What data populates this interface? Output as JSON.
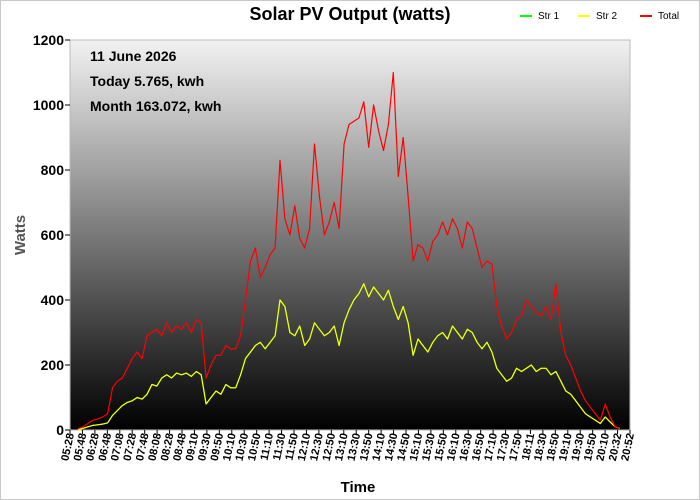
{
  "chart_data": {
    "type": "line",
    "title": "Solar PV Output (watts)",
    "xlabel": "Time",
    "ylabel": "Watts",
    "ylim": [
      0,
      1200
    ],
    "yticks": [
      0,
      200,
      400,
      600,
      800,
      1000,
      1200
    ],
    "grid": false,
    "legend_position": "top-right",
    "annotations": [
      "11 June 2026",
      "Today 5.765, kwh",
      "Month 163.072, kwh"
    ],
    "x_tick_labels": [
      "05:28",
      "05:48",
      "06:28",
      "06:48",
      "07:08",
      "07:28",
      "07:48",
      "08:08",
      "08:28",
      "08:48",
      "09:10",
      "09:30",
      "09:50",
      "10:10",
      "10:30",
      "10:50",
      "11:10",
      "11:30",
      "11:50",
      "12:10",
      "12:30",
      "12:50",
      "13:10",
      "13:30",
      "13:50",
      "14:10",
      "14:30",
      "14:50",
      "15:10",
      "15:30",
      "15:50",
      "16:10",
      "16:30",
      "16:50",
      "17:10",
      "17:30",
      "17:50",
      "18:11",
      "18:30",
      "18:50",
      "19:10",
      "19:30",
      "19:50",
      "20:10",
      "20:32",
      "20:52"
    ],
    "series": [
      {
        "name": "Str 1",
        "color": "#00ff00",
        "values": [
          2,
          5,
          10,
          14,
          16,
          18,
          22,
          45,
          60,
          75,
          85,
          90,
          100,
          95,
          110,
          140,
          135,
          160,
          170,
          160,
          175,
          170,
          175,
          165,
          180,
          170,
          80,
          100,
          120,
          110,
          140,
          130,
          130,
          170,
          220,
          240,
          260,
          270,
          250,
          270,
          290,
          400,
          380,
          300,
          290,
          320,
          260,
          280,
          330,
          310,
          290,
          300,
          320,
          260,
          330,
          370,
          400,
          420,
          450,
          410,
          440,
          420,
          400,
          430,
          380,
          340,
          380,
          330,
          230,
          280,
          260,
          240,
          270,
          290,
          300,
          280,
          320,
          300,
          280,
          310,
          300,
          270,
          250,
          270,
          240,
          190,
          170,
          150,
          160,
          190,
          180,
          190,
          200,
          180,
          190,
          190,
          170,
          180,
          150,
          120,
          110,
          90,
          70,
          50,
          40,
          30,
          20,
          40,
          25,
          10,
          5
        ]
      },
      {
        "name": "Str 2",
        "color": "#ffff00",
        "values": [
          2,
          5,
          10,
          14,
          16,
          18,
          22,
          45,
          60,
          75,
          85,
          90,
          100,
          95,
          110,
          140,
          135,
          160,
          170,
          160,
          175,
          170,
          175,
          165,
          180,
          170,
          80,
          100,
          120,
          110,
          140,
          130,
          130,
          170,
          220,
          240,
          260,
          270,
          250,
          270,
          290,
          400,
          380,
          300,
          290,
          320,
          260,
          280,
          330,
          310,
          290,
          300,
          320,
          260,
          330,
          370,
          400,
          420,
          450,
          410,
          440,
          420,
          400,
          430,
          380,
          340,
          380,
          330,
          230,
          280,
          260,
          240,
          270,
          290,
          300,
          280,
          320,
          300,
          280,
          310,
          300,
          270,
          250,
          270,
          240,
          190,
          170,
          150,
          160,
          190,
          180,
          190,
          200,
          180,
          190,
          190,
          170,
          180,
          150,
          120,
          110,
          90,
          70,
          50,
          40,
          30,
          20,
          40,
          25,
          10,
          5
        ]
      },
      {
        "name": "Total",
        "color": "#ff0000",
        "values": [
          4,
          10,
          20,
          30,
          34,
          40,
          50,
          130,
          150,
          160,
          190,
          220,
          240,
          220,
          290,
          300,
          310,
          290,
          330,
          300,
          320,
          310,
          330,
          300,
          340,
          330,
          160,
          200,
          230,
          230,
          260,
          250,
          250,
          290,
          400,
          520,
          560,
          470,
          500,
          540,
          560,
          830,
          650,
          600,
          690,
          590,
          560,
          620,
          880,
          720,
          600,
          640,
          700,
          620,
          880,
          940,
          950,
          960,
          1010,
          870,
          1000,
          920,
          860,
          940,
          1100,
          780,
          900,
          720,
          520,
          570,
          560,
          520,
          580,
          600,
          640,
          600,
          650,
          620,
          560,
          640,
          620,
          560,
          500,
          520,
          510,
          380,
          320,
          280,
          300,
          340,
          350,
          400,
          380,
          360,
          350,
          380,
          340,
          450,
          300,
          230,
          200,
          160,
          120,
          90,
          70,
          50,
          30,
          80,
          40,
          10,
          5
        ]
      }
    ]
  }
}
